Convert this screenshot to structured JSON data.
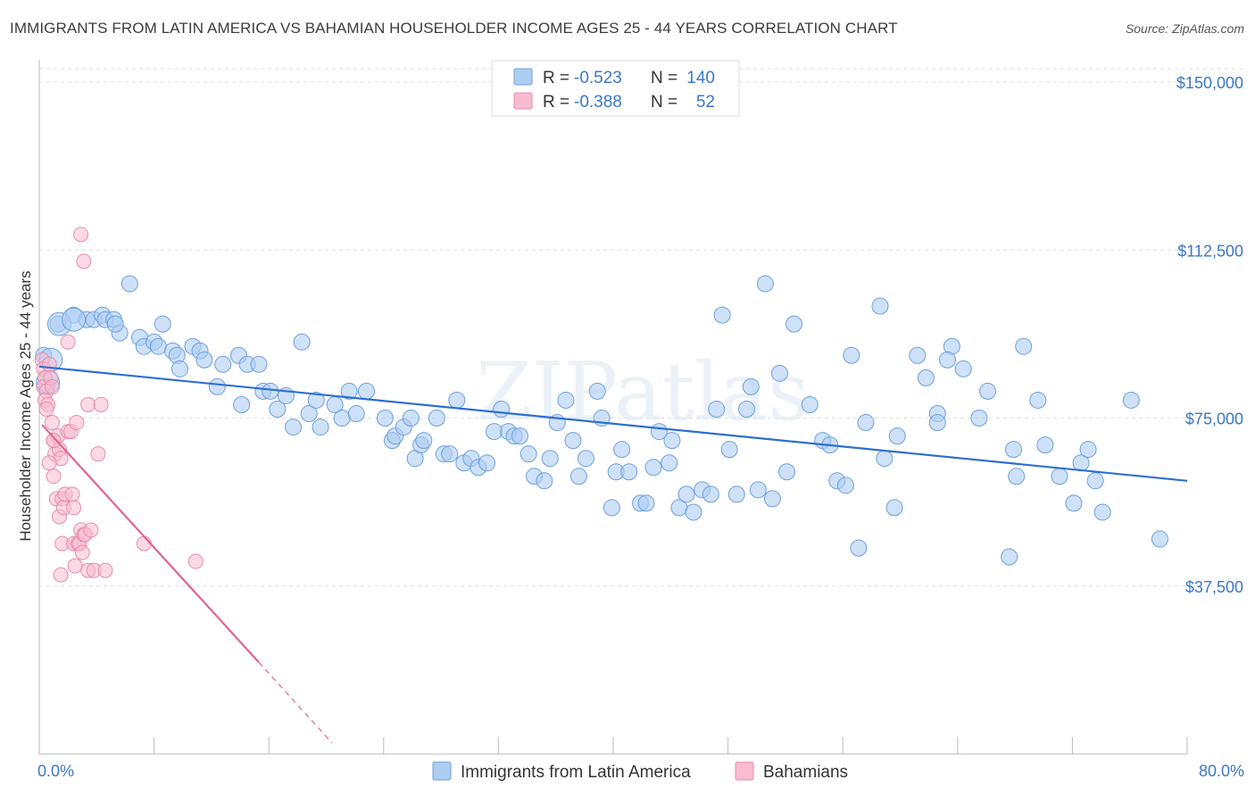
{
  "title": "IMMIGRANTS FROM LATIN AMERICA VS BAHAMIAN HOUSEHOLDER INCOME AGES 25 - 44 YEARS CORRELATION CHART",
  "source": "Source: ZipAtlas.com",
  "watermark": "ZIPatlas",
  "legend": {
    "rows": [
      {
        "r_label": "R =",
        "r_value": "-0.523",
        "n_label": "N =",
        "n_value": "140",
        "color": "#aecdf2",
        "stroke": "#6d9fdc"
      },
      {
        "r_label": "R =",
        "r_value": "-0.388",
        "n_label": "N =",
        "n_value": "52",
        "color": "#f7bcd0",
        "stroke": "#e88cab"
      }
    ]
  },
  "bottom_legend": [
    "Immigrants from Latin America",
    "Bahamians"
  ],
  "chart_data": {
    "type": "scatter",
    "title": "IMMIGRANTS FROM LATIN AMERICA VS BAHAMIAN HOUSEHOLDER INCOME AGES 25 - 44 YEARS CORRELATION CHART",
    "xlabel": "",
    "ylabel": "Householder Income Ages 25 - 44 years",
    "xlim": [
      0,
      80
    ],
    "ylim": [
      0,
      153000
    ],
    "x_tick_labels": [
      "0.0%",
      "80.0%"
    ],
    "y_ticks": [
      37500,
      75000,
      112500,
      150000
    ],
    "y_tick_labels": [
      "$37,500",
      "$75,000",
      "$112,500",
      "$150,000"
    ],
    "grid": true,
    "legend_position": "top-center",
    "series": [
      {
        "name": "Immigrants from Latin America",
        "color": "#6d9fdc",
        "fill": "#aecdf2",
        "trend": {
          "x": [
            0,
            80
          ],
          "y": [
            86500,
            61000
          ],
          "color": "#2f6fcf"
        },
        "points": [
          [
            0.3,
            89000
          ],
          [
            0.5,
            82000
          ],
          [
            1.3,
            96000
          ],
          [
            2.4,
            98000
          ],
          [
            3.3,
            97000
          ],
          [
            3.8,
            97000
          ],
          [
            4.4,
            98000
          ],
          [
            4.6,
            97000
          ],
          [
            5.2,
            97000
          ],
          [
            5.6,
            94000
          ],
          [
            5.3,
            96000
          ],
          [
            6.3,
            105000
          ],
          [
            7.0,
            93000
          ],
          [
            7.3,
            91000
          ],
          [
            8.0,
            92000
          ],
          [
            8.3,
            91000
          ],
          [
            8.6,
            96000
          ],
          [
            9.3,
            90000
          ],
          [
            9.6,
            89000
          ],
          [
            9.8,
            86000
          ],
          [
            10.7,
            91000
          ],
          [
            11.2,
            90000
          ],
          [
            11.5,
            88000
          ],
          [
            12.4,
            82000
          ],
          [
            12.8,
            87000
          ],
          [
            13.9,
            89000
          ],
          [
            14.1,
            78000
          ],
          [
            14.5,
            87000
          ],
          [
            15.3,
            87000
          ],
          [
            15.6,
            81000
          ],
          [
            16.1,
            81000
          ],
          [
            16.6,
            77000
          ],
          [
            17.2,
            80000
          ],
          [
            17.7,
            73000
          ],
          [
            18.3,
            92000
          ],
          [
            18.8,
            76000
          ],
          [
            19.3,
            79000
          ],
          [
            19.6,
            73000
          ],
          [
            20.6,
            78000
          ],
          [
            21.1,
            75000
          ],
          [
            21.6,
            81000
          ],
          [
            22.1,
            76000
          ],
          [
            22.8,
            81000
          ],
          [
            24.1,
            75000
          ],
          [
            24.6,
            70000
          ],
          [
            24.8,
            71000
          ],
          [
            25.4,
            73000
          ],
          [
            25.9,
            75000
          ],
          [
            26.2,
            66000
          ],
          [
            26.6,
            69000
          ],
          [
            26.8,
            70000
          ],
          [
            27.7,
            75000
          ],
          [
            28.2,
            67000
          ],
          [
            28.6,
            67000
          ],
          [
            29.1,
            79000
          ],
          [
            29.6,
            65000
          ],
          [
            30.1,
            66000
          ],
          [
            30.6,
            64000
          ],
          [
            31.2,
            65000
          ],
          [
            31.7,
            72000
          ],
          [
            32.2,
            77000
          ],
          [
            32.7,
            72000
          ],
          [
            33.1,
            71000
          ],
          [
            33.5,
            71000
          ],
          [
            34.1,
            67000
          ],
          [
            34.5,
            62000
          ],
          [
            35.2,
            61000
          ],
          [
            35.6,
            66000
          ],
          [
            36.1,
            74000
          ],
          [
            36.7,
            79000
          ],
          [
            37.2,
            70000
          ],
          [
            37.6,
            62000
          ],
          [
            38.1,
            66000
          ],
          [
            38.9,
            81000
          ],
          [
            39.2,
            75000
          ],
          [
            39.9,
            55000
          ],
          [
            40.2,
            63000
          ],
          [
            40.6,
            68000
          ],
          [
            41.1,
            63000
          ],
          [
            41.9,
            56000
          ],
          [
            42.3,
            56000
          ],
          [
            42.8,
            64000
          ],
          [
            43.2,
            72000
          ],
          [
            43.9,
            65000
          ],
          [
            44.1,
            70000
          ],
          [
            44.6,
            55000
          ],
          [
            45.1,
            58000
          ],
          [
            45.6,
            54000
          ],
          [
            46.2,
            59000
          ],
          [
            46.8,
            58000
          ],
          [
            47.2,
            77000
          ],
          [
            47.6,
            98000
          ],
          [
            48.1,
            68000
          ],
          [
            48.6,
            58000
          ],
          [
            49.3,
            77000
          ],
          [
            49.6,
            82000
          ],
          [
            50.1,
            59000
          ],
          [
            50.6,
            105000
          ],
          [
            51.1,
            57000
          ],
          [
            51.6,
            85000
          ],
          [
            52.1,
            63000
          ],
          [
            52.6,
            96000
          ],
          [
            53.7,
            78000
          ],
          [
            54.6,
            70000
          ],
          [
            55.1,
            69000
          ],
          [
            55.6,
            61000
          ],
          [
            56.2,
            60000
          ],
          [
            56.6,
            89000
          ],
          [
            57.1,
            46000
          ],
          [
            57.6,
            74000
          ],
          [
            58.6,
            100000
          ],
          [
            58.9,
            66000
          ],
          [
            59.6,
            55000
          ],
          [
            59.8,
            71000
          ],
          [
            61.2,
            89000
          ],
          [
            61.8,
            84000
          ],
          [
            62.6,
            76000
          ],
          [
            62.6,
            74000
          ],
          [
            63.6,
            91000
          ],
          [
            63.3,
            88000
          ],
          [
            64.4,
            86000
          ],
          [
            65.5,
            75000
          ],
          [
            66.1,
            81000
          ],
          [
            67.6,
            44000
          ],
          [
            67.9,
            68000
          ],
          [
            68.1,
            62000
          ],
          [
            68.6,
            91000
          ],
          [
            69.6,
            79000
          ],
          [
            70.1,
            69000
          ],
          [
            71.1,
            62000
          ],
          [
            72.1,
            56000
          ],
          [
            72.6,
            65000
          ],
          [
            73.1,
            68000
          ],
          [
            73.6,
            61000
          ],
          [
            74.1,
            54000
          ],
          [
            76.1,
            79000
          ],
          [
            78.1,
            48000
          ]
        ],
        "large_points": [
          [
            0.8,
            88000
          ],
          [
            0.6,
            83000
          ],
          [
            1.4,
            96000
          ],
          [
            2.4,
            97000
          ]
        ]
      },
      {
        "name": "Bahamians",
        "color": "#e88cab",
        "fill": "#f7bcd0",
        "trend": {
          "x": [
            0.2,
            15.3
          ],
          "y": [
            73500,
            20500
          ],
          "dash_to": [
            20.4,
            2500
          ],
          "color": "#e2638f"
        },
        "points": [
          [
            0.2,
            88000
          ],
          [
            0.3,
            86000
          ],
          [
            0.4,
            84000
          ],
          [
            0.3,
            82000
          ],
          [
            0.5,
            81000
          ],
          [
            0.4,
            79000
          ],
          [
            0.6,
            78000
          ],
          [
            0.7,
            87000
          ],
          [
            0.8,
            84000
          ],
          [
            0.9,
            82000
          ],
          [
            0.5,
            77000
          ],
          [
            0.9,
            74000
          ],
          [
            1.0,
            70000
          ],
          [
            1.1,
            67000
          ],
          [
            1.0,
            62000
          ],
          [
            1.3,
            71000
          ],
          [
            1.4,
            68000
          ],
          [
            1.5,
            66000
          ],
          [
            1.2,
            57000
          ],
          [
            1.6,
            57000
          ],
          [
            1.4,
            53000
          ],
          [
            1.7,
            55000
          ],
          [
            1.8,
            58000
          ],
          [
            1.6,
            47000
          ],
          [
            1.5,
            40000
          ],
          [
            2.0,
            92000
          ],
          [
            2.0,
            72000
          ],
          [
            2.2,
            72000
          ],
          [
            2.3,
            58000
          ],
          [
            2.4,
            55000
          ],
          [
            2.4,
            47000
          ],
          [
            2.5,
            42000
          ],
          [
            2.6,
            74000
          ],
          [
            2.7,
            47000
          ],
          [
            2.8,
            47000
          ],
          [
            2.9,
            50000
          ],
          [
            3.1,
            49000
          ],
          [
            3.0,
            45000
          ],
          [
            3.2,
            49000
          ],
          [
            3.4,
            41000
          ],
          [
            3.4,
            78000
          ],
          [
            3.6,
            50000
          ],
          [
            3.8,
            41000
          ],
          [
            4.1,
            67000
          ],
          [
            4.3,
            78000
          ],
          [
            4.6,
            41000
          ],
          [
            2.9,
            116000
          ],
          [
            3.1,
            110000
          ],
          [
            7.3,
            47000
          ],
          [
            10.9,
            43000
          ],
          [
            1.0,
            70000
          ],
          [
            0.7,
            65000
          ]
        ]
      }
    ]
  }
}
